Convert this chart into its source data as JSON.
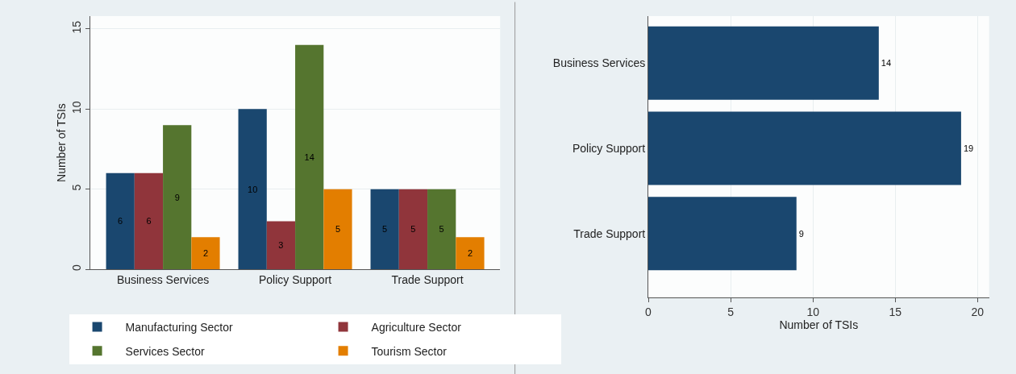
{
  "chart_data": [
    {
      "type": "bar",
      "ylabel": "Number of TSIs",
      "categories": [
        "Business Services",
        "Policy Support",
        "Trade Support"
      ],
      "series": [
        {
          "name": "Manufacturing Sector",
          "color": "#1a476f",
          "values": [
            6,
            10,
            5
          ]
        },
        {
          "name": "Agriculture Sector",
          "color": "#90353b",
          "values": [
            6,
            3,
            5
          ]
        },
        {
          "name": "Services Sector",
          "color": "#55752f",
          "values": [
            9,
            14,
            5
          ]
        },
        {
          "name": "Tourism Sector",
          "color": "#e37e00",
          "values": [
            2,
            5,
            2
          ]
        }
      ],
      "ylim": [
        0,
        15.8
      ],
      "yticks": [
        0,
        5,
        10,
        15
      ],
      "grid": "y",
      "legend": "bottom",
      "data_labels": true
    },
    {
      "type": "bar",
      "orientation": "horizontal",
      "xlabel": "Number of TSIs",
      "categories": [
        "Business Services",
        "Policy Support",
        "Trade Support"
      ],
      "values": [
        14,
        19,
        9
      ],
      "color": "#1a476f",
      "xlim": [
        0,
        20.7
      ],
      "xticks": [
        0,
        5,
        10,
        15,
        20
      ],
      "grid": "x",
      "data_labels": true
    }
  ]
}
